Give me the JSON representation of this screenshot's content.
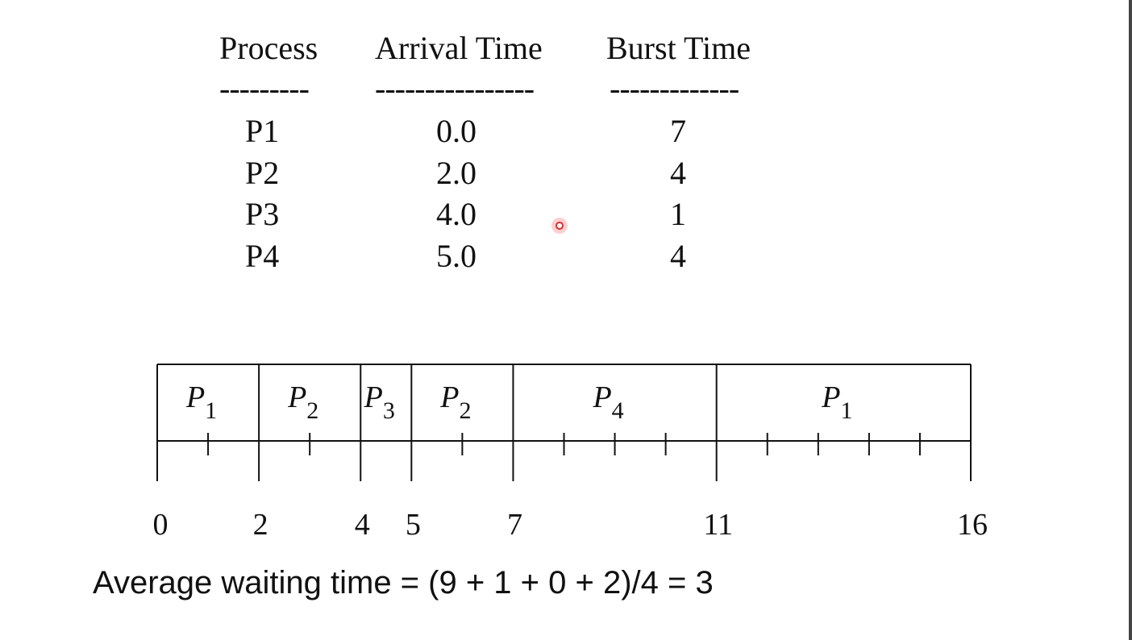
{
  "table": {
    "headers": [
      "Process",
      "Arrival Time",
      "Burst Time"
    ],
    "separators": [
      "---------",
      "----------------",
      "-------------"
    ],
    "rows": [
      [
        "P1",
        "0.0",
        "7"
      ],
      [
        "P2",
        "2.0",
        "4"
      ],
      [
        "P3",
        "4.0",
        "1"
      ],
      [
        "P4",
        "5.0",
        "4"
      ]
    ]
  },
  "gantt": {
    "segments": [
      {
        "process": "P",
        "sub": "1",
        "start": 0,
        "end": 2
      },
      {
        "process": "P",
        "sub": "2",
        "start": 2,
        "end": 4
      },
      {
        "process": "P",
        "sub": "3",
        "start": 4,
        "end": 5
      },
      {
        "process": "P",
        "sub": "2",
        "start": 5,
        "end": 7
      },
      {
        "process": "P",
        "sub": "4",
        "start": 7,
        "end": 11
      },
      {
        "process": "P",
        "sub": "1",
        "start": 11,
        "end": 16
      }
    ],
    "time_labels": [
      "0",
      "2",
      "4",
      "5",
      "7",
      "11",
      "16"
    ],
    "total": 16
  },
  "average_waiting_time": "Average waiting time = (9 + 1 + 0 + 2)/4 = 3"
}
